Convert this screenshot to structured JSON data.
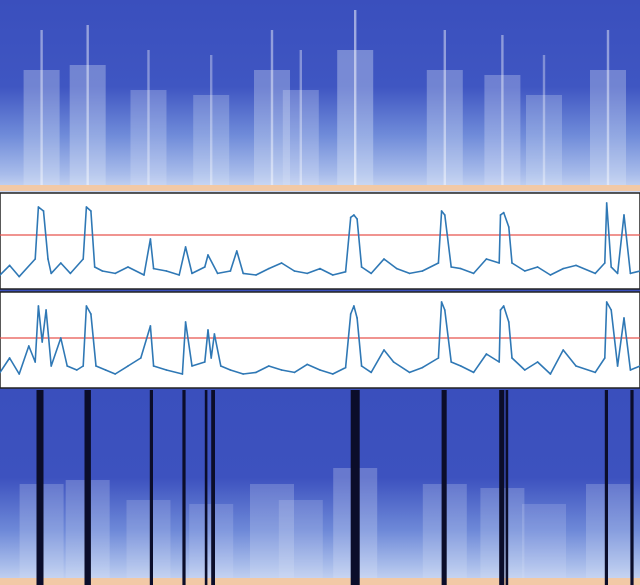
{
  "colors": {
    "spectrogram_low": "#3b4fbf",
    "spectrogram_mid": "#8fa6e4",
    "spectrogram_high": "#dde6f7",
    "spectrogram_floor": "#f2c9a6",
    "trace": "#2f78b5",
    "threshold": "#e8554e",
    "masked_band": "#0b0d2a",
    "panel_bg": "#ffffff",
    "panel_border": "#222222"
  },
  "chart_data": [
    {
      "type": "heatmap",
      "role": "input-spectrogram",
      "x_range": [
        0,
        1
      ],
      "energy_columns": [
        {
          "x": 0.065,
          "level": 0.55
        },
        {
          "x": 0.137,
          "level": 0.6
        },
        {
          "x": 0.232,
          "level": 0.35
        },
        {
          "x": 0.33,
          "level": 0.3
        },
        {
          "x": 0.425,
          "level": 0.55
        },
        {
          "x": 0.47,
          "level": 0.35
        },
        {
          "x": 0.555,
          "level": 0.75
        },
        {
          "x": 0.695,
          "level": 0.55
        },
        {
          "x": 0.785,
          "level": 0.5
        },
        {
          "x": 0.85,
          "level": 0.3
        },
        {
          "x": 0.95,
          "level": 0.55
        }
      ]
    },
    {
      "type": "line",
      "role": "detection-score-1",
      "threshold": 0.6,
      "ylim": [
        0,
        1.05
      ],
      "x": [
        0.0,
        0.015,
        0.03,
        0.055,
        0.06,
        0.068,
        0.075,
        0.08,
        0.095,
        0.11,
        0.13,
        0.135,
        0.142,
        0.148,
        0.16,
        0.18,
        0.2,
        0.225,
        0.235,
        0.24,
        0.26,
        0.28,
        0.29,
        0.3,
        0.32,
        0.325,
        0.34,
        0.36,
        0.37,
        0.38,
        0.4,
        0.42,
        0.44,
        0.46,
        0.48,
        0.5,
        0.52,
        0.54,
        0.548,
        0.553,
        0.558,
        0.565,
        0.58,
        0.6,
        0.62,
        0.64,
        0.66,
        0.685,
        0.69,
        0.695,
        0.705,
        0.72,
        0.74,
        0.76,
        0.78,
        0.782,
        0.787,
        0.795,
        0.8,
        0.82,
        0.84,
        0.86,
        0.88,
        0.9,
        0.93,
        0.945,
        0.948,
        0.955,
        0.965,
        0.975,
        0.985,
        1.0
      ],
      "y": [
        0.1,
        0.22,
        0.08,
        0.3,
        0.95,
        0.9,
        0.3,
        0.12,
        0.25,
        0.12,
        0.3,
        0.95,
        0.9,
        0.2,
        0.15,
        0.12,
        0.2,
        0.1,
        0.55,
        0.18,
        0.15,
        0.1,
        0.45,
        0.12,
        0.2,
        0.35,
        0.12,
        0.15,
        0.4,
        0.12,
        0.1,
        0.18,
        0.25,
        0.15,
        0.12,
        0.18,
        0.1,
        0.14,
        0.82,
        0.85,
        0.8,
        0.2,
        0.12,
        0.3,
        0.18,
        0.12,
        0.15,
        0.25,
        0.9,
        0.85,
        0.2,
        0.18,
        0.12,
        0.3,
        0.25,
        0.85,
        0.88,
        0.7,
        0.25,
        0.15,
        0.2,
        0.1,
        0.18,
        0.22,
        0.12,
        0.25,
        1.0,
        0.2,
        0.12,
        0.85,
        0.12,
        0.15
      ]
    },
    {
      "type": "line",
      "role": "detection-score-2",
      "threshold": 0.55,
      "ylim": [
        0,
        1.05
      ],
      "x": [
        0.0,
        0.015,
        0.03,
        0.045,
        0.055,
        0.06,
        0.066,
        0.072,
        0.08,
        0.095,
        0.105,
        0.12,
        0.13,
        0.135,
        0.142,
        0.15,
        0.165,
        0.18,
        0.2,
        0.22,
        0.235,
        0.24,
        0.26,
        0.285,
        0.29,
        0.3,
        0.32,
        0.325,
        0.33,
        0.335,
        0.345,
        0.36,
        0.38,
        0.4,
        0.42,
        0.44,
        0.46,
        0.48,
        0.5,
        0.52,
        0.54,
        0.548,
        0.553,
        0.558,
        0.565,
        0.58,
        0.6,
        0.615,
        0.64,
        0.66,
        0.685,
        0.69,
        0.695,
        0.705,
        0.72,
        0.74,
        0.76,
        0.78,
        0.782,
        0.787,
        0.795,
        0.8,
        0.82,
        0.84,
        0.86,
        0.88,
        0.9,
        0.93,
        0.945,
        0.948,
        0.955,
        0.965,
        0.975,
        0.985,
        1.0
      ],
      "y": [
        0.12,
        0.3,
        0.1,
        0.45,
        0.25,
        0.95,
        0.5,
        0.9,
        0.2,
        0.55,
        0.2,
        0.15,
        0.2,
        0.95,
        0.85,
        0.2,
        0.15,
        0.1,
        0.2,
        0.3,
        0.7,
        0.2,
        0.15,
        0.1,
        0.75,
        0.2,
        0.25,
        0.65,
        0.3,
        0.6,
        0.2,
        0.15,
        0.1,
        0.12,
        0.2,
        0.15,
        0.12,
        0.22,
        0.15,
        0.1,
        0.18,
        0.85,
        0.95,
        0.8,
        0.2,
        0.12,
        0.4,
        0.25,
        0.12,
        0.18,
        0.3,
        1.0,
        0.9,
        0.25,
        0.2,
        0.12,
        0.35,
        0.25,
        0.9,
        0.95,
        0.75,
        0.3,
        0.15,
        0.25,
        0.1,
        0.4,
        0.2,
        0.12,
        0.3,
        1.0,
        0.9,
        0.2,
        0.8,
        0.15,
        0.2
      ]
    },
    {
      "type": "heatmap",
      "role": "masked-spectrogram",
      "x_range": [
        0,
        1
      ],
      "masked_bands": [
        [
          0.057,
          0.068
        ],
        [
          0.132,
          0.142
        ],
        [
          0.234,
          0.239
        ],
        [
          0.285,
          0.29
        ],
        [
          0.32,
          0.324
        ],
        [
          0.33,
          0.336
        ],
        [
          0.548,
          0.562
        ],
        [
          0.69,
          0.698
        ],
        [
          0.78,
          0.788
        ],
        [
          0.79,
          0.794
        ],
        [
          0.945,
          0.95
        ],
        [
          0.985,
          0.99
        ]
      ]
    }
  ]
}
